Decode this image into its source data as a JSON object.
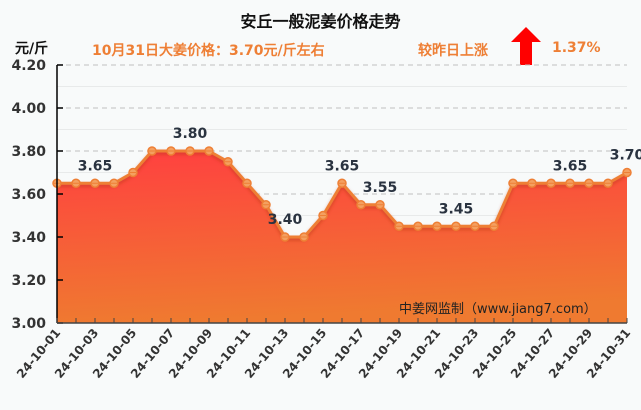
{
  "header": {
    "title": "安丘一般泥姜价格走势",
    "unit": "元/斤",
    "price_text": "10月31日大姜价格：3.70元/斤左右",
    "compare_text": "较昨日上涨",
    "change_pct": "1.37%",
    "trend_icon": "up-arrow-icon"
  },
  "watermark": "中姜网监制（www.jiang7.com）",
  "colors": {
    "line": "#ee7f35",
    "fill_top": "#ff4040",
    "fill_bottom": "#ef7a30",
    "accent_text": "#ee7f35",
    "arrow": "#ff0000",
    "grid": "#c0c0c0"
  },
  "chart_data": {
    "type": "area",
    "title": "安丘一般泥姜价格走势",
    "xlabel": "",
    "ylabel": "元/斤",
    "ylim": [
      3.0,
      4.2
    ],
    "yticks": [
      "3.00",
      "3.20",
      "3.40",
      "3.60",
      "3.80",
      "4.00",
      "4.20"
    ],
    "grid": true,
    "x": [
      "24-10-01",
      "24-10-02",
      "24-10-03",
      "24-10-04",
      "24-10-05",
      "24-10-06",
      "24-10-07",
      "24-10-08",
      "24-10-09",
      "24-10-10",
      "24-10-11",
      "24-10-12",
      "24-10-13",
      "24-10-14",
      "24-10-15",
      "24-10-16",
      "24-10-17",
      "24-10-18",
      "24-10-19",
      "24-10-20",
      "24-10-21",
      "24-10-22",
      "24-10-23",
      "24-10-24",
      "24-10-25",
      "24-10-26",
      "24-10-27",
      "24-10-28",
      "24-10-29",
      "24-10-30",
      "24-10-31"
    ],
    "xtick_labels": [
      "24-10-01",
      "24-10-03",
      "24-10-05",
      "24-10-07",
      "24-10-09",
      "24-10-11",
      "24-10-13",
      "24-10-15",
      "24-10-17",
      "24-10-19",
      "24-10-21",
      "24-10-23",
      "24-10-25",
      "24-10-27",
      "24-10-29",
      "24-10-31"
    ],
    "values": [
      3.65,
      3.65,
      3.65,
      3.65,
      3.7,
      3.8,
      3.8,
      3.8,
      3.8,
      3.75,
      3.65,
      3.55,
      3.4,
      3.4,
      3.5,
      3.65,
      3.55,
      3.55,
      3.45,
      3.45,
      3.45,
      3.45,
      3.45,
      3.45,
      3.65,
      3.65,
      3.65,
      3.65,
      3.65,
      3.65,
      3.7
    ],
    "annotations": [
      {
        "index": 2,
        "text": "3.65"
      },
      {
        "index": 7,
        "text": "3.80"
      },
      {
        "index": 12,
        "text": "3.40"
      },
      {
        "index": 15,
        "text": "3.65"
      },
      {
        "index": 17,
        "text": "3.55"
      },
      {
        "index": 21,
        "text": "3.45"
      },
      {
        "index": 27,
        "text": "3.65"
      },
      {
        "index": 30,
        "text": "3.70"
      }
    ]
  }
}
